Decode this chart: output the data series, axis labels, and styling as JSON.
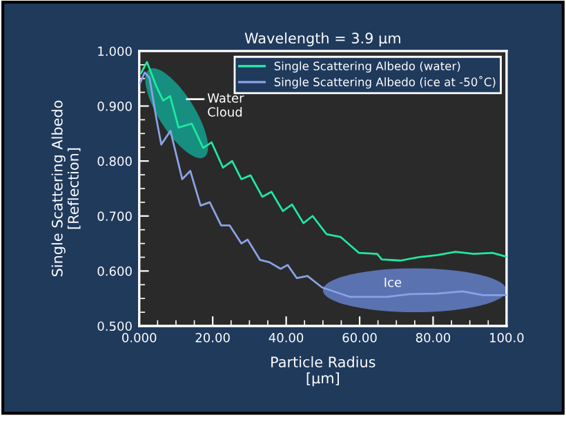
{
  "chart_data": {
    "type": "line",
    "title": "Wavelength = 3.9 µm",
    "xlabel": "Particle Radius\n[µm]",
    "ylabel": "Single Scattering Albedo\n[Reflection]",
    "xlim": [
      0,
      100
    ],
    "ylim": [
      0.5,
      1.0
    ],
    "xticks": [
      {
        "value": 0,
        "label": "0.000"
      },
      {
        "value": 20,
        "label": "20.00"
      },
      {
        "value": 40,
        "label": "40.00"
      },
      {
        "value": 60,
        "label": "60.00"
      },
      {
        "value": 80,
        "label": "80.00"
      },
      {
        "value": 100,
        "label": "100.0"
      }
    ],
    "yticks": [
      {
        "value": 0.5,
        "label": "0.500"
      },
      {
        "value": 0.6,
        "label": "0.600"
      },
      {
        "value": 0.7,
        "label": "0.700"
      },
      {
        "value": 0.8,
        "label": "0.800"
      },
      {
        "value": 0.9,
        "label": "0.900"
      },
      {
        "value": 1.0,
        "label": "1.000"
      }
    ],
    "grid": false,
    "legend": "top right",
    "marker": "none",
    "line_style": "solid",
    "annotations": [
      "Water\nCloud",
      "Ice"
    ],
    "series": [
      {
        "name": "Single Scattering Albedo (water)",
        "color": "#20e8a0",
        "x": [
          0.5,
          2.1,
          4.7,
          6.5,
          8.4,
          10.7,
          14.3,
          17.4,
          19.7,
          22.8,
          25.3,
          27.8,
          30.3,
          33.5,
          36.0,
          39.1,
          41.6,
          44.7,
          47.2,
          51.0,
          54.8,
          59.8,
          64.8,
          66.0,
          71.1,
          76.1,
          81.1,
          86.1,
          91.1,
          96.1,
          100
        ],
        "values": [
          0.96,
          0.98,
          0.935,
          0.91,
          0.918,
          0.861,
          0.868,
          0.824,
          0.834,
          0.788,
          0.8,
          0.767,
          0.774,
          0.735,
          0.744,
          0.709,
          0.721,
          0.687,
          0.7,
          0.667,
          0.662,
          0.633,
          0.631,
          0.621,
          0.619,
          0.625,
          0.629,
          0.635,
          0.631,
          0.633,
          0.626
        ]
      },
      {
        "name": "Single Scattering Albedo (ice at -50˚C)",
        "color": "#8aa2e6",
        "x": [
          0.3,
          1.5,
          2.8,
          4.7,
          6.0,
          8.5,
          11.7,
          13.9,
          16.7,
          19.2,
          22.3,
          24.6,
          27.8,
          29.5,
          32.9,
          35.4,
          38.5,
          40.4,
          42.9,
          45.8,
          49.8,
          57.3,
          67.3,
          73.6,
          81.1,
          88.0,
          93.6,
          100
        ],
        "values": [
          0.943,
          0.961,
          0.951,
          0.876,
          0.83,
          0.855,
          0.767,
          0.782,
          0.719,
          0.725,
          0.683,
          0.683,
          0.65,
          0.657,
          0.62,
          0.616,
          0.604,
          0.611,
          0.587,
          0.591,
          0.57,
          0.553,
          0.553,
          0.558,
          0.559,
          0.563,
          0.556,
          0.556
        ]
      }
    ]
  }
}
